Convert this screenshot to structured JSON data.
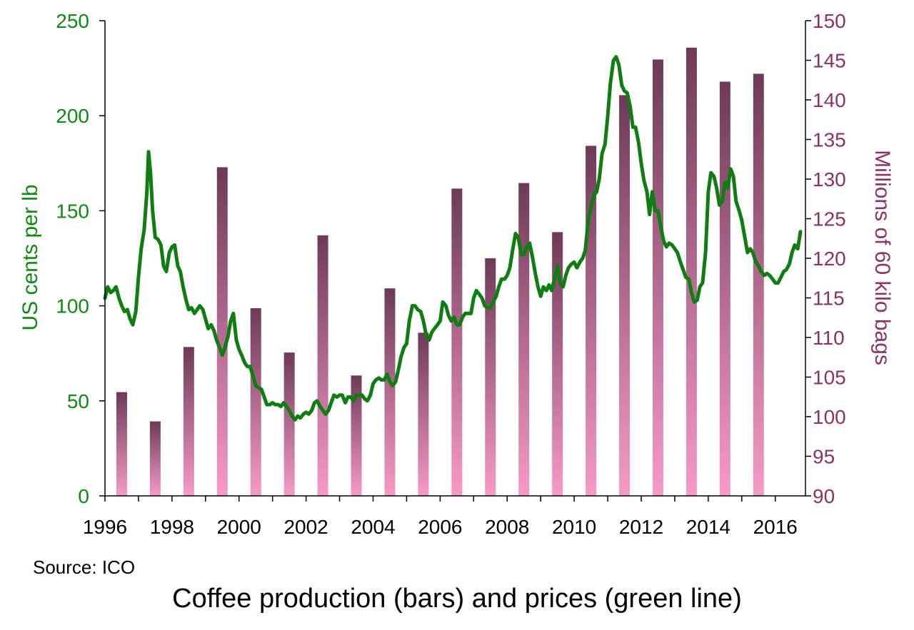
{
  "source": "Source: ICO",
  "caption": "Coffee production (bars) and prices (green line)",
  "colors": {
    "price_line": "#0f7d12",
    "left_axis_text": "#0f8a14",
    "right_axis_text": "#8a3364",
    "bar_top": "#6e3a58",
    "bar_bottom": "#f79ac8"
  },
  "chart_data": {
    "type": "bar+line",
    "x_axis": {
      "range": [
        1996,
        2016.9
      ],
      "tick_labels": [
        "1996",
        "1998",
        "2000",
        "2002",
        "2004",
        "2006",
        "2008",
        "2010",
        "2012",
        "2014",
        "2016"
      ]
    },
    "left_axis": {
      "label": "US cents per lb",
      "range": [
        0,
        250
      ],
      "ticks": [
        0,
        50,
        100,
        150,
        200,
        250
      ]
    },
    "right_axis": {
      "label": "Millions of 60 kilo bags",
      "range": [
        90,
        150
      ],
      "ticks": [
        90,
        95,
        100,
        105,
        110,
        115,
        120,
        125,
        130,
        135,
        140,
        145,
        150
      ]
    },
    "production_bars": {
      "axis": "right",
      "x": [
        1996.5,
        1997.5,
        1998.5,
        1999.5,
        2000.5,
        2001.5,
        2002.5,
        2003.5,
        2004.5,
        2005.5,
        2006.5,
        2007.5,
        2008.5,
        2009.5,
        2010.5,
        2011.5,
        2012.5,
        2013.5,
        2014.5,
        2015.5
      ],
      "values": [
        103.1,
        99.4,
        108.8,
        131.5,
        113.7,
        108.1,
        122.9,
        105.2,
        116.2,
        110.6,
        128.8,
        120.0,
        129.5,
        123.3,
        134.2,
        140.6,
        145.1,
        146.6,
        142.3,
        143.3
      ]
    },
    "price_series": {
      "axis": "left",
      "points": [
        [
          1996.0,
          104
        ],
        [
          1996.08,
          110
        ],
        [
          1996.17,
          107
        ],
        [
          1996.25,
          108
        ],
        [
          1996.33,
          110
        ],
        [
          1996.42,
          104
        ],
        [
          1996.5,
          100
        ],
        [
          1996.58,
          97
        ],
        [
          1996.67,
          98
        ],
        [
          1996.75,
          93
        ],
        [
          1996.83,
          90
        ],
        [
          1996.92,
          97
        ],
        [
          1997.0,
          115
        ],
        [
          1997.08,
          130
        ],
        [
          1997.17,
          140
        ],
        [
          1997.25,
          160
        ],
        [
          1997.3,
          181
        ],
        [
          1997.36,
          170
        ],
        [
          1997.42,
          150
        ],
        [
          1997.5,
          136
        ],
        [
          1997.58,
          135
        ],
        [
          1997.67,
          132
        ],
        [
          1997.75,
          121
        ],
        [
          1997.83,
          118
        ],
        [
          1997.92,
          128
        ],
        [
          1998.0,
          131
        ],
        [
          1998.08,
          132
        ],
        [
          1998.17,
          121
        ],
        [
          1998.25,
          118
        ],
        [
          1998.33,
          110
        ],
        [
          1998.42,
          103
        ],
        [
          1998.5,
          98
        ],
        [
          1998.58,
          99
        ],
        [
          1998.67,
          96
        ],
        [
          1998.75,
          98
        ],
        [
          1998.83,
          100
        ],
        [
          1998.92,
          98
        ],
        [
          1999.0,
          93
        ],
        [
          1999.08,
          88
        ],
        [
          1999.17,
          90
        ],
        [
          1999.25,
          87
        ],
        [
          1999.33,
          82
        ],
        [
          1999.42,
          78
        ],
        [
          1999.5,
          74
        ],
        [
          1999.58,
          78
        ],
        [
          1999.67,
          84
        ],
        [
          1999.75,
          92
        ],
        [
          1999.83,
          96
        ],
        [
          1999.92,
          82
        ],
        [
          2000.0,
          77
        ],
        [
          2000.08,
          74
        ],
        [
          2000.17,
          70
        ],
        [
          2000.25,
          68
        ],
        [
          2000.33,
          68
        ],
        [
          2000.42,
          63
        ],
        [
          2000.5,
          58
        ],
        [
          2000.58,
          57
        ],
        [
          2000.67,
          56
        ],
        [
          2000.75,
          52
        ],
        [
          2000.83,
          48
        ],
        [
          2000.92,
          48
        ],
        [
          2001.0,
          49
        ],
        [
          2001.08,
          48
        ],
        [
          2001.17,
          48
        ],
        [
          2001.25,
          47
        ],
        [
          2001.33,
          49
        ],
        [
          2001.42,
          47
        ],
        [
          2001.5,
          45
        ],
        [
          2001.58,
          42
        ],
        [
          2001.67,
          40
        ],
        [
          2001.75,
          42
        ],
        [
          2001.83,
          41
        ],
        [
          2001.92,
          43
        ],
        [
          2002.0,
          44
        ],
        [
          2002.08,
          43
        ],
        [
          2002.17,
          45
        ],
        [
          2002.25,
          49
        ],
        [
          2002.33,
          50
        ],
        [
          2002.42,
          47
        ],
        [
          2002.5,
          45
        ],
        [
          2002.58,
          43
        ],
        [
          2002.67,
          45
        ],
        [
          2002.75,
          49
        ],
        [
          2002.83,
          53
        ],
        [
          2002.92,
          52
        ],
        [
          2003.0,
          53
        ],
        [
          2003.08,
          53
        ],
        [
          2003.17,
          49
        ],
        [
          2003.25,
          52
        ],
        [
          2003.33,
          52
        ],
        [
          2003.42,
          50
        ],
        [
          2003.5,
          53
        ],
        [
          2003.58,
          53
        ],
        [
          2003.67,
          53
        ],
        [
          2003.75,
          51
        ],
        [
          2003.83,
          50
        ],
        [
          2003.92,
          53
        ],
        [
          2004.0,
          59
        ],
        [
          2004.08,
          61
        ],
        [
          2004.17,
          62
        ],
        [
          2004.25,
          61
        ],
        [
          2004.33,
          61
        ],
        [
          2004.42,
          64
        ],
        [
          2004.5,
          60
        ],
        [
          2004.58,
          58
        ],
        [
          2004.67,
          60
        ],
        [
          2004.75,
          66
        ],
        [
          2004.83,
          73
        ],
        [
          2004.92,
          78
        ],
        [
          2005.0,
          80
        ],
        [
          2005.08,
          92
        ],
        [
          2005.17,
          100
        ],
        [
          2005.25,
          100
        ],
        [
          2005.33,
          98
        ],
        [
          2005.42,
          97
        ],
        [
          2005.5,
          92
        ],
        [
          2005.58,
          85
        ],
        [
          2005.67,
          82
        ],
        [
          2005.75,
          86
        ],
        [
          2005.83,
          88
        ],
        [
          2005.92,
          90
        ],
        [
          2006.0,
          92
        ],
        [
          2006.08,
          102
        ],
        [
          2006.17,
          100
        ],
        [
          2006.25,
          95
        ],
        [
          2006.33,
          92
        ],
        [
          2006.42,
          94
        ],
        [
          2006.5,
          90
        ],
        [
          2006.58,
          90
        ],
        [
          2006.67,
          94
        ],
        [
          2006.75,
          96
        ],
        [
          2006.83,
          96
        ],
        [
          2006.92,
          96
        ],
        [
          2007.0,
          104
        ],
        [
          2007.08,
          108
        ],
        [
          2007.17,
          106
        ],
        [
          2007.25,
          104
        ],
        [
          2007.33,
          100
        ],
        [
          2007.42,
          99
        ],
        [
          2007.5,
          99
        ],
        [
          2007.58,
          102
        ],
        [
          2007.67,
          105
        ],
        [
          2007.75,
          110
        ],
        [
          2007.83,
          114
        ],
        [
          2007.92,
          114
        ],
        [
          2008.0,
          116
        ],
        [
          2008.08,
          120
        ],
        [
          2008.17,
          130
        ],
        [
          2008.25,
          138
        ],
        [
          2008.33,
          136
        ],
        [
          2008.42,
          127
        ],
        [
          2008.5,
          127
        ],
        [
          2008.58,
          131
        ],
        [
          2008.67,
          133
        ],
        [
          2008.75,
          126
        ],
        [
          2008.83,
          118
        ],
        [
          2008.92,
          110
        ],
        [
          2009.0,
          105
        ],
        [
          2009.08,
          110
        ],
        [
          2009.17,
          108
        ],
        [
          2009.25,
          111
        ],
        [
          2009.33,
          108
        ],
        [
          2009.42,
          115
        ],
        [
          2009.5,
          121
        ],
        [
          2009.58,
          112
        ],
        [
          2009.67,
          110
        ],
        [
          2009.75,
          116
        ],
        [
          2009.83,
          120
        ],
        [
          2009.92,
          122
        ],
        [
          2010.0,
          123
        ],
        [
          2010.08,
          120
        ],
        [
          2010.17,
          123
        ],
        [
          2010.25,
          125
        ],
        [
          2010.33,
          129
        ],
        [
          2010.42,
          145
        ],
        [
          2010.5,
          152
        ],
        [
          2010.58,
          158
        ],
        [
          2010.67,
          160
        ],
        [
          2010.75,
          167
        ],
        [
          2010.83,
          180
        ],
        [
          2010.92,
          185
        ],
        [
          2011.0,
          200
        ],
        [
          2011.08,
          217
        ],
        [
          2011.17,
          229
        ],
        [
          2011.25,
          231
        ],
        [
          2011.33,
          227
        ],
        [
          2011.42,
          216
        ],
        [
          2011.5,
          213
        ],
        [
          2011.58,
          212
        ],
        [
          2011.67,
          205
        ],
        [
          2011.75,
          194
        ],
        [
          2011.83,
          194
        ],
        [
          2011.92,
          186
        ],
        [
          2012.0,
          175
        ],
        [
          2012.08,
          166
        ],
        [
          2012.17,
          160
        ],
        [
          2012.25,
          148
        ],
        [
          2012.33,
          160
        ],
        [
          2012.42,
          150
        ],
        [
          2012.5,
          150
        ],
        [
          2012.58,
          142
        ],
        [
          2012.67,
          134
        ],
        [
          2012.75,
          131
        ],
        [
          2012.83,
          133
        ],
        [
          2012.92,
          132
        ],
        [
          2013.0,
          130
        ],
        [
          2013.08,
          128
        ],
        [
          2013.17,
          123
        ],
        [
          2013.25,
          119
        ],
        [
          2013.33,
          115
        ],
        [
          2013.42,
          114
        ],
        [
          2013.5,
          107
        ],
        [
          2013.58,
          102
        ],
        [
          2013.67,
          103
        ],
        [
          2013.75,
          110
        ],
        [
          2013.83,
          112
        ],
        [
          2013.92,
          128
        ],
        [
          2014.0,
          160
        ],
        [
          2014.08,
          170
        ],
        [
          2014.17,
          168
        ],
        [
          2014.25,
          162
        ],
        [
          2014.33,
          153
        ],
        [
          2014.42,
          155
        ],
        [
          2014.5,
          165
        ],
        [
          2014.58,
          162
        ],
        [
          2014.67,
          172
        ],
        [
          2014.75,
          168
        ],
        [
          2014.83,
          155
        ],
        [
          2014.92,
          150
        ],
        [
          2015.0,
          145
        ],
        [
          2015.08,
          137
        ],
        [
          2015.17,
          128
        ],
        [
          2015.25,
          130
        ],
        [
          2015.33,
          128
        ],
        [
          2015.42,
          123
        ],
        [
          2015.5,
          121
        ],
        [
          2015.58,
          118
        ],
        [
          2015.67,
          116
        ],
        [
          2015.75,
          117
        ],
        [
          2015.83,
          116
        ],
        [
          2015.92,
          114
        ],
        [
          2016.0,
          112
        ],
        [
          2016.08,
          112
        ],
        [
          2016.17,
          115
        ],
        [
          2016.25,
          118
        ],
        [
          2016.33,
          119
        ],
        [
          2016.42,
          122
        ],
        [
          2016.5,
          128
        ],
        [
          2016.58,
          132
        ],
        [
          2016.67,
          130
        ],
        [
          2016.75,
          139
        ]
      ]
    }
  }
}
